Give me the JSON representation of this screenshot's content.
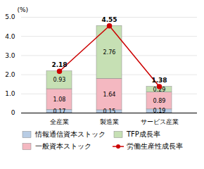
{
  "chart_data": {
    "type": "bar",
    "categories": [
      "全産業",
      "製造業",
      "サービス産業"
    ],
    "series": [
      {
        "name": "情報通信資本ストック",
        "type": "bar",
        "color": "#b8cce4",
        "values": [
          0.17,
          0.15,
          0.19
        ]
      },
      {
        "name": "一般資本ストック",
        "type": "bar",
        "color": "#f4b8c1",
        "values": [
          1.08,
          1.64,
          0.89
        ]
      },
      {
        "name": "TFP成長率",
        "type": "bar",
        "color": "#c6e0b4",
        "values": [
          0.93,
          2.76,
          0.29
        ]
      },
      {
        "name": "労働生産性成長率",
        "type": "line",
        "color": "#cc0000",
        "marker": "circle",
        "values": [
          2.18,
          4.55,
          1.38
        ]
      }
    ],
    "stacked": true,
    "data_labels": true,
    "ylabel": "(%)",
    "ylim": [
      0,
      5.0
    ],
    "yticks": [
      0,
      {
        "value": 1.0,
        "label": "1.0"
      },
      {
        "value": 2.0,
        "label": "2.0"
      },
      {
        "value": 3.0,
        "label": "3.0"
      },
      {
        "value": 4.0,
        "label": "4.0"
      },
      {
        "value": 5.0,
        "label": "5.0"
      }
    ],
    "grid": true,
    "legend": "bottom"
  }
}
